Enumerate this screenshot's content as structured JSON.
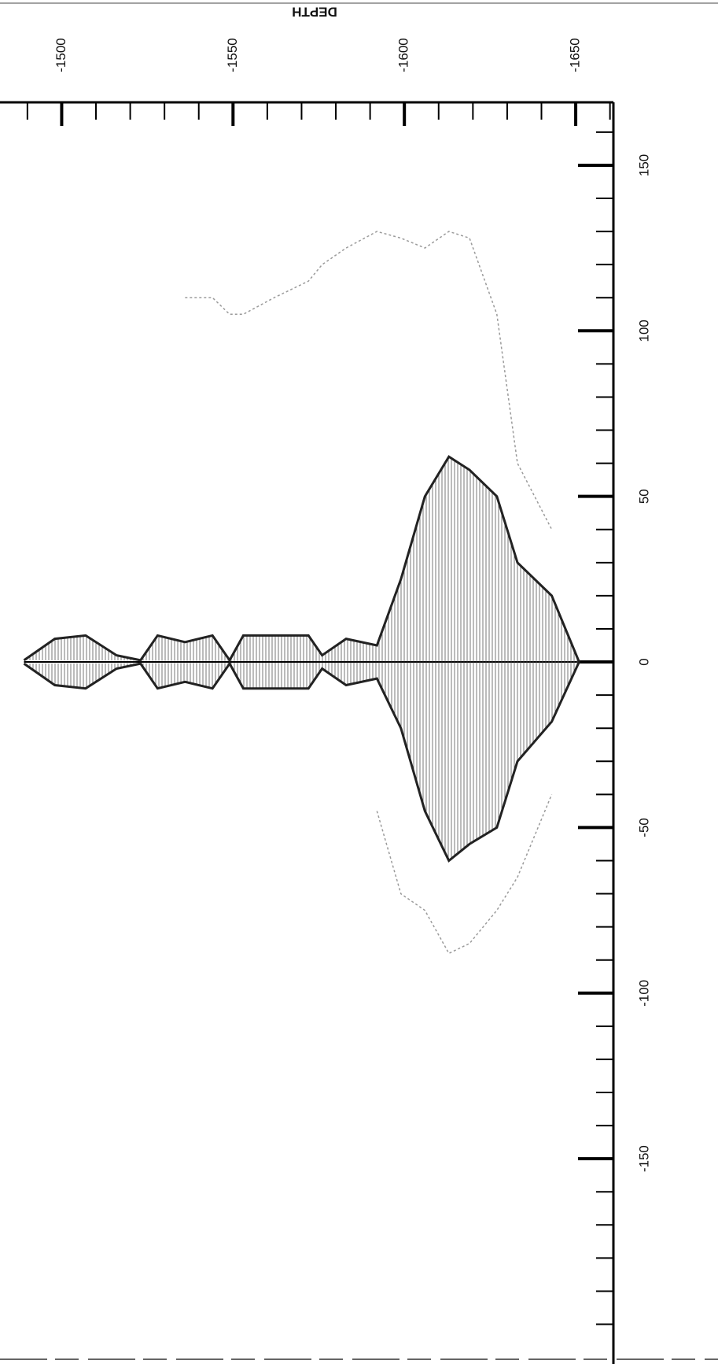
{
  "chart_data": {
    "type": "line",
    "title": "DEPTH",
    "x": [
      -1489,
      -1498,
      -1507,
      -1516,
      -1523,
      -1528,
      -1536,
      -1544,
      -1549,
      -1553,
      -1562,
      -1572,
      -1576,
      -1583,
      -1592,
      -1599,
      -1606,
      -1613,
      -1619,
      -1627,
      -1633,
      -1643,
      -1651
    ],
    "series": [
      {
        "color": "#222222",
        "values": [
          0.5,
          7,
          8,
          2,
          0.5,
          8,
          6,
          8,
          0.5,
          8,
          8,
          8,
          2,
          7,
          5,
          25,
          50,
          62,
          58,
          50,
          30,
          20,
          0
        ]
      },
      {
        "color": "#222222",
        "values": [
          -0.5,
          -7,
          -8,
          -2,
          -0.5,
          -8,
          -6,
          -8,
          -0.5,
          -8,
          -8,
          -8,
          -2,
          -7,
          -5,
          -20,
          -45,
          -60,
          -55,
          -50,
          -30,
          -18,
          0
        ]
      },
      {
        "color": "#9a9a9a",
        "values": [
          null,
          null,
          null,
          null,
          null,
          null,
          110,
          110,
          105,
          105,
          110,
          115,
          120,
          125,
          130,
          128,
          125,
          130,
          128,
          105,
          60,
          40,
          null
        ]
      },
      {
        "color": "#9a9a9a",
        "values": [
          null,
          null,
          null,
          null,
          null,
          null,
          null,
          null,
          null,
          null,
          null,
          null,
          null,
          null,
          -45,
          -70,
          -75,
          -88,
          -85,
          -75,
          -65,
          -40,
          null
        ]
      }
    ],
    "xlim": [
      -1482,
      -1661
    ],
    "xticks": [
      -1500,
      -1550,
      -1600,
      -1650
    ],
    "xminorticks": [
      -1490,
      -1510,
      -1520,
      -1530,
      -1540,
      -1560,
      -1570,
      -1580,
      -1590,
      -1610,
      -1620,
      -1630,
      -1640,
      -1660
    ],
    "ylim": [
      169,
      -212
    ],
    "yticks": [
      150,
      100,
      50,
      0,
      -50,
      -100,
      -150
    ],
    "yminorticks": [
      160,
      140,
      130,
      120,
      110,
      90,
      80,
      70,
      60,
      40,
      30,
      20,
      10,
      -10,
      -20,
      -30,
      -40,
      -60,
      -70,
      -80,
      -90,
      -110,
      -120,
      -130,
      -140,
      -160,
      -170,
      -180,
      -190,
      -200
    ]
  }
}
